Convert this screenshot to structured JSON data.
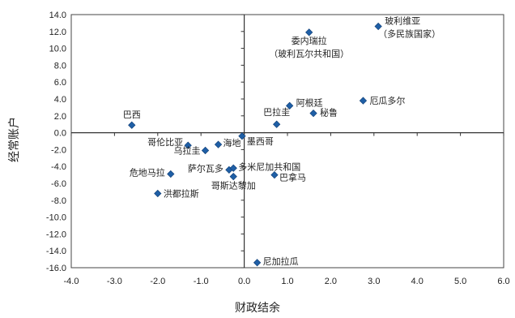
{
  "chart_data": {
    "type": "scatter",
    "title": "",
    "xlabel": "财政结余",
    "ylabel": "经常账户",
    "xlim": [
      -4.0,
      6.0
    ],
    "ylim": [
      -16.0,
      14.0
    ],
    "xticks": [
      "-4.0",
      "-3.0",
      "-2.0",
      "-1.0",
      "0.0",
      "1.0",
      "2.0",
      "3.0",
      "4.0",
      "5.0",
      "6.0"
    ],
    "yticks": [
      "14.0",
      "12.0",
      "10.0",
      "8.0",
      "6.0",
      "4.0",
      "2.0",
      "0.0",
      "-2.0",
      "-4.0",
      "-6.0",
      "-8.0",
      "-10.0",
      "-12.0",
      "-14.0",
      "-16.0"
    ],
    "xtick_values": [
      -4,
      -3,
      -2,
      -1,
      0,
      1,
      2,
      3,
      4,
      5,
      6
    ],
    "ytick_values": [
      14,
      12,
      10,
      8,
      6,
      4,
      2,
      0,
      -2,
      -4,
      -6,
      -8,
      -10,
      -12,
      -14,
      -16
    ],
    "grid": false,
    "marker_color": "#1F5FA6",
    "points": [
      {
        "label": "玻利维亚",
        "label2": "（多民族国家）",
        "x": 3.1,
        "y": 12.6
      },
      {
        "label": "委内瑞拉",
        "label2": "（玻利瓦尔共和国）",
        "x": 1.5,
        "y": 11.9
      },
      {
        "label": "厄瓜多尔",
        "x": 2.75,
        "y": 3.8
      },
      {
        "label": "阿根廷",
        "x": 1.05,
        "y": 3.2
      },
      {
        "label": "秘鲁",
        "x": 1.6,
        "y": 2.3
      },
      {
        "label": "巴拉圭",
        "x": 0.75,
        "y": 1.0
      },
      {
        "label": "巴西",
        "x": -2.6,
        "y": 0.9
      },
      {
        "label": "墨西哥",
        "x": -0.05,
        "y": -0.4
      },
      {
        "label": "哥伦比亚",
        "x": -1.3,
        "y": -1.5
      },
      {
        "label": "海地",
        "x": -0.6,
        "y": -1.4
      },
      {
        "label": "乌拉圭",
        "x": -0.9,
        "y": -2.1
      },
      {
        "label": "萨尔瓦多",
        "x": -0.35,
        "y": -4.4
      },
      {
        "label": "多米尼加共和国",
        "x": -0.25,
        "y": -4.2
      },
      {
        "label": "哥斯达黎加",
        "x": -0.25,
        "y": -5.2
      },
      {
        "label": "巴拿马",
        "x": 0.7,
        "y": -5.0
      },
      {
        "label": "危地马拉",
        "x": -1.7,
        "y": -4.9
      },
      {
        "label": "洪都拉斯",
        "x": -2.0,
        "y": -7.2
      },
      {
        "label": "尼加拉瓜",
        "x": 0.3,
        "y": -15.4
      }
    ]
  }
}
